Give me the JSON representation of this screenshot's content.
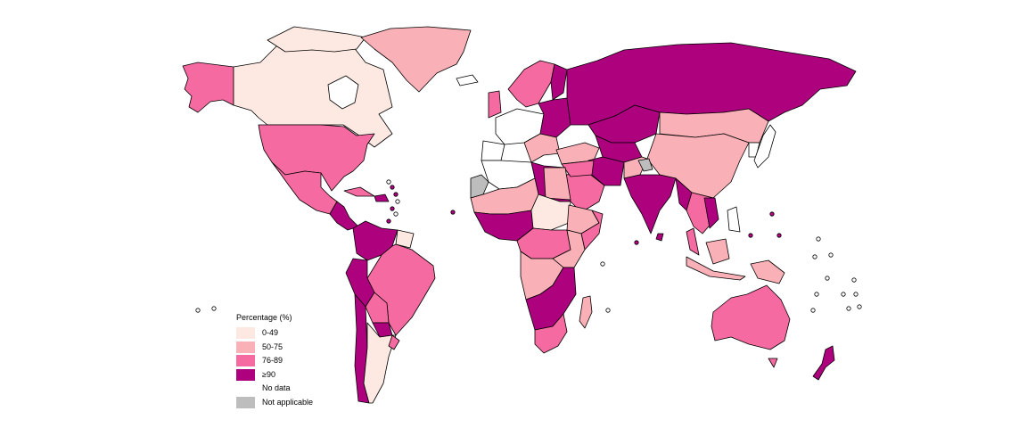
{
  "legend": {
    "title": "Percentage (%)",
    "items": [
      {
        "label": "0-49",
        "color": "#fde9e1"
      },
      {
        "label": "50-75",
        "color": "#f9b0b6"
      },
      {
        "label": "76-89",
        "color": "#f56aa0"
      },
      {
        "label": "≥90",
        "color": "#ae017e"
      },
      {
        "label": "No data",
        "color": "#ffffff"
      },
      {
        "label": "Not applicable",
        "color": "#bdbdbd"
      }
    ]
  },
  "colors": {
    "c0": "#fde9e1",
    "c1": "#f9b0b6",
    "c2": "#f56aa0",
    "c3": "#ae017e",
    "nodata": "#ffffff",
    "na": "#bdbdbd"
  }
}
